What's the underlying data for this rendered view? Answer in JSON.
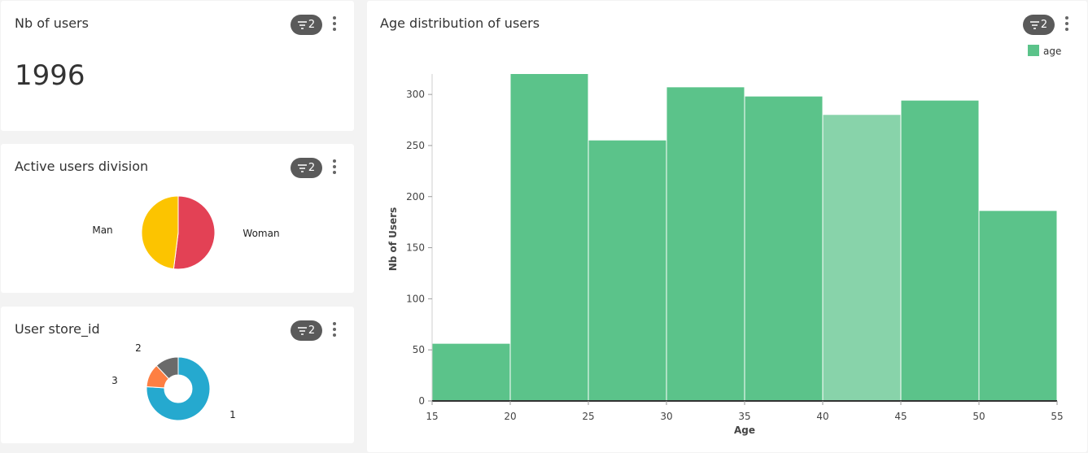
{
  "cards": {
    "users_count": {
      "title": "Nb of users",
      "value": "1996",
      "filter_count": "2"
    },
    "active_division": {
      "title": "Active users division",
      "filter_count": "2"
    },
    "store_id": {
      "title": "User store_id",
      "filter_count": "2"
    },
    "age_distribution": {
      "title": "Age distribution of users",
      "filter_count": "2"
    }
  },
  "chart_data": [
    {
      "type": "pie",
      "title": "Active users division",
      "slices": [
        {
          "label": "Woman",
          "value": 52,
          "color": "#e34155"
        },
        {
          "label": "Man",
          "value": 48,
          "color": "#fcc400"
        }
      ]
    },
    {
      "type": "pie",
      "title": "User store_id",
      "donut": true,
      "slices": [
        {
          "label": "1",
          "value": 76,
          "color": "#25a9cf"
        },
        {
          "label": "3",
          "value": 12,
          "color": "#fe7f43"
        },
        {
          "label": "2",
          "value": 12,
          "color": "#6a6a6a"
        }
      ]
    },
    {
      "type": "bar",
      "title": "Age distribution of users",
      "xlabel": "Age",
      "ylabel": "Nb of Users",
      "legend": {
        "label": "age",
        "color": "#5bc38a",
        "position": "top-right"
      },
      "bins": [
        {
          "x0": 15,
          "x1": 20,
          "value": 56
        },
        {
          "x0": 20,
          "x1": 25,
          "value": 320
        },
        {
          "x0": 25,
          "x1": 30,
          "value": 255
        },
        {
          "x0": 30,
          "x1": 35,
          "value": 307
        },
        {
          "x0": 35,
          "x1": 40,
          "value": 298
        },
        {
          "x0": 40,
          "x1": 45,
          "value": 280,
          "highlighted": true
        },
        {
          "x0": 45,
          "x1": 50,
          "value": 294
        },
        {
          "x0": 50,
          "x1": 55,
          "value": 186
        }
      ],
      "xticks": [
        15,
        20,
        25,
        30,
        35,
        40,
        45,
        50,
        55
      ],
      "yticks": [
        0,
        50,
        100,
        150,
        200,
        250,
        300
      ],
      "xlim": [
        15,
        55
      ],
      "ylim": [
        0,
        320
      ],
      "colors": {
        "bar": "#5bc38a",
        "bar_highlight": "#88d3aa"
      }
    }
  ]
}
